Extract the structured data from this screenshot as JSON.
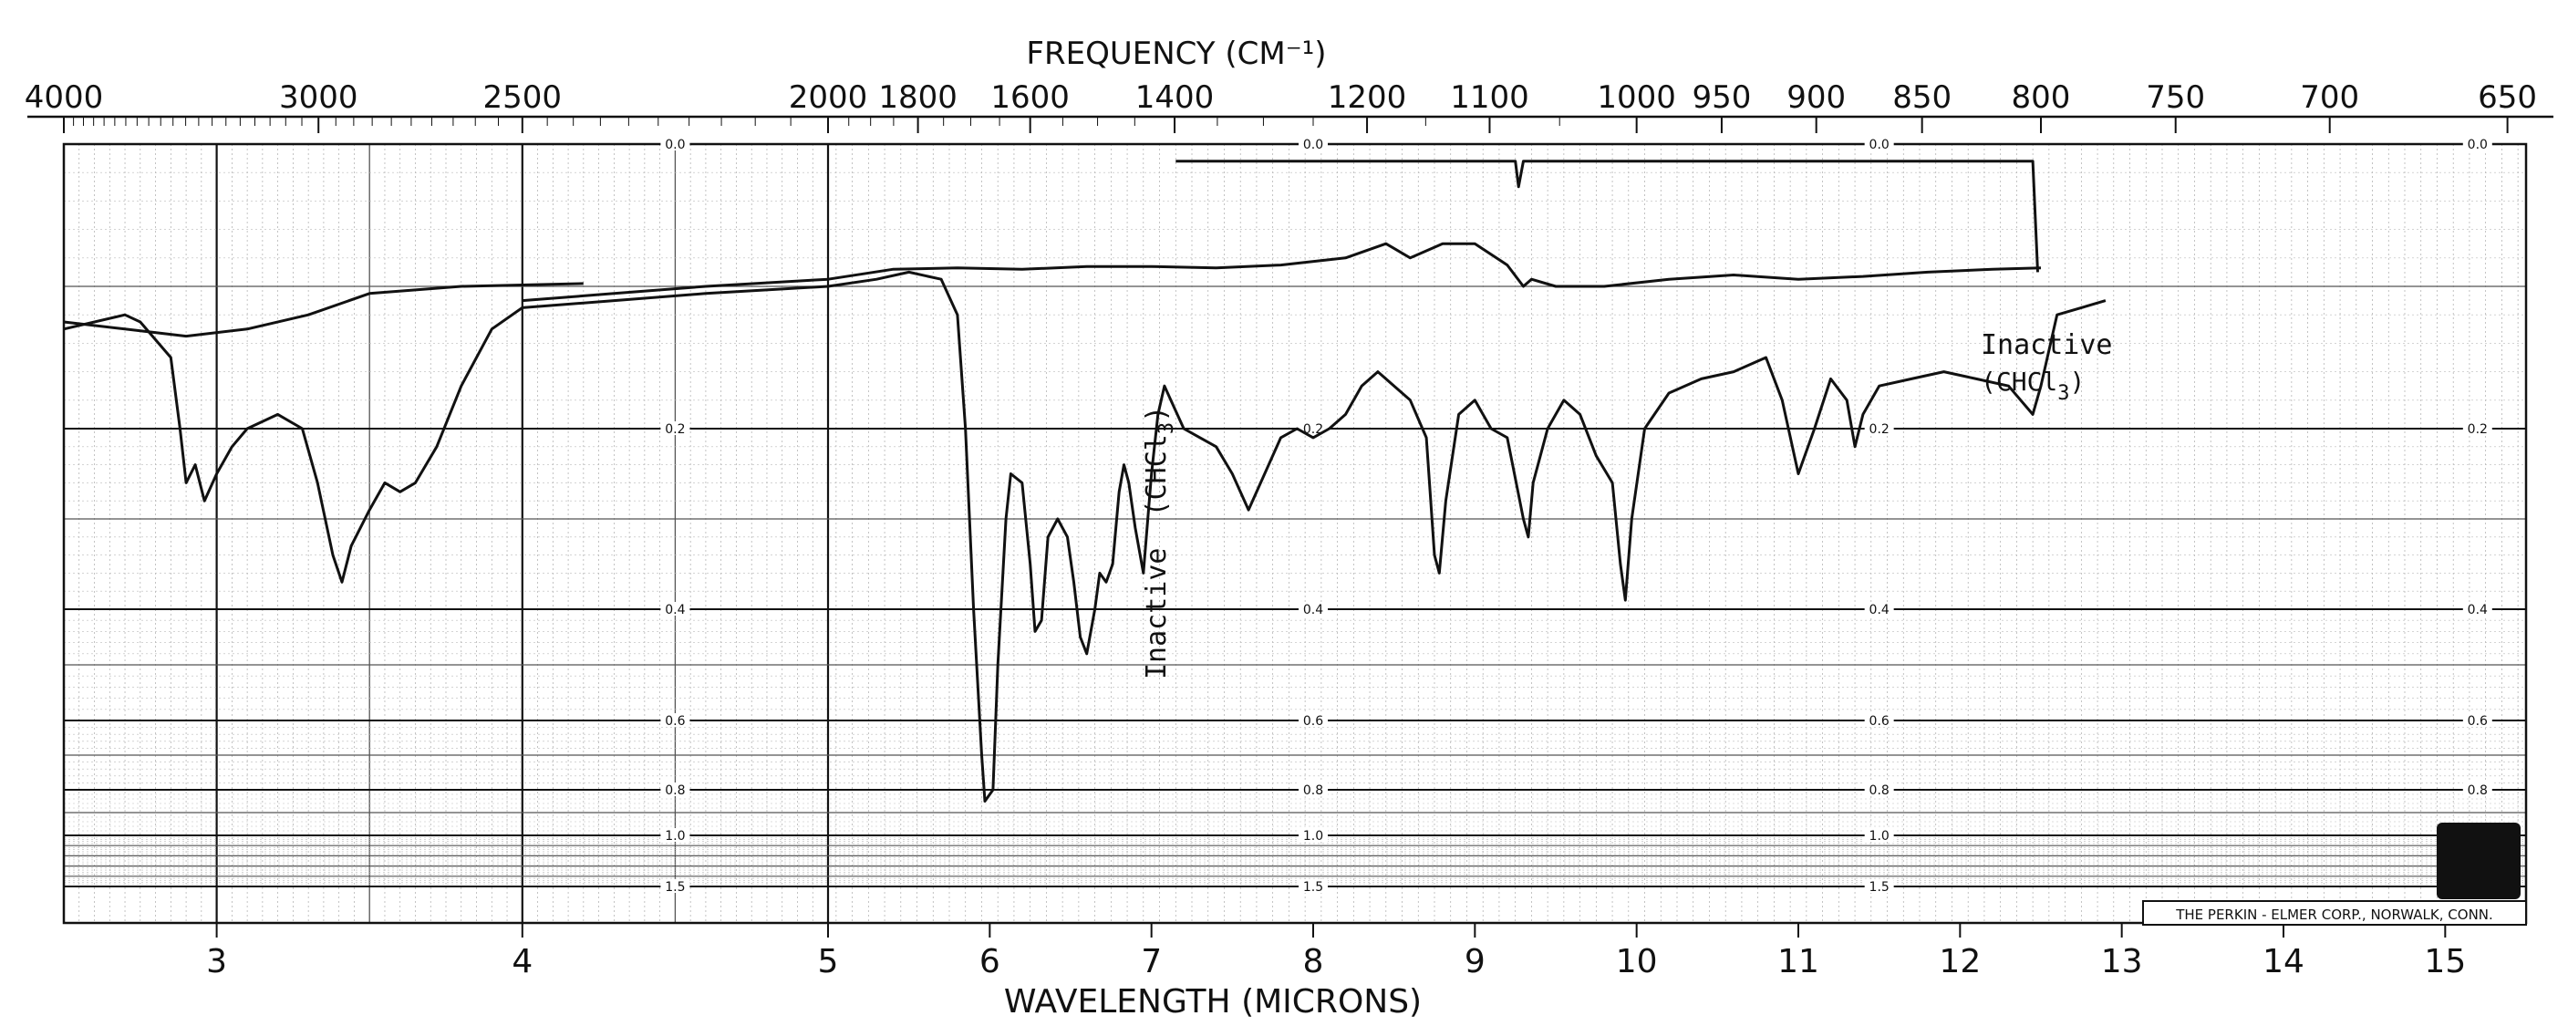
{
  "chart_data": {
    "type": "line",
    "title": "FREQUENCY (CM⁻¹)",
    "xlabel": "WAVELENGTH (MICRONS)",
    "x_range_microns": [
      2.5,
      15.5
    ],
    "y_scale": "absorbance (log), increasing downward",
    "frequency_ticks": [
      {
        "label": "4000",
        "micron": 2.5
      },
      {
        "label": "3000",
        "micron": 3.333
      },
      {
        "label": "2500",
        "micron": 4.0
      },
      {
        "label": "2000",
        "micron": 5.0
      },
      {
        "label": "1800",
        "micron": 5.556
      },
      {
        "label": "1600",
        "micron": 6.25
      },
      {
        "label": "1400",
        "micron": 7.143
      },
      {
        "label": "1200",
        "micron": 8.333
      },
      {
        "label": "1100",
        "micron": 9.091
      },
      {
        "label": "1000",
        "micron": 10.0
      },
      {
        "label": "950",
        "micron": 10.526
      },
      {
        "label": "900",
        "micron": 11.111
      },
      {
        "label": "850",
        "micron": 11.765
      },
      {
        "label": "800",
        "micron": 12.5
      },
      {
        "label": "750",
        "micron": 13.333
      },
      {
        "label": "700",
        "micron": 14.286
      },
      {
        "label": "650",
        "micron": 15.385
      }
    ],
    "wavelength_ticks": [
      {
        "label": "3",
        "micron": 3
      },
      {
        "label": "4",
        "micron": 4
      },
      {
        "label": "5",
        "micron": 5
      },
      {
        "label": "6",
        "micron": 6
      },
      {
        "label": "7",
        "micron": 7
      },
      {
        "label": "8",
        "micron": 8
      },
      {
        "label": "9",
        "micron": 9
      },
      {
        "label": "10",
        "micron": 10
      },
      {
        "label": "11",
        "micron": 11
      },
      {
        "label": "12",
        "micron": 12
      },
      {
        "label": "13",
        "micron": 13
      },
      {
        "label": "14",
        "micron": 14
      },
      {
        "label": "15",
        "micron": 15
      }
    ],
    "absorbance_labels": [
      {
        "label": "0.0",
        "value": 0.0
      },
      {
        "label": "0.2",
        "value": 0.2
      },
      {
        "label": "0.4",
        "value": 0.4
      },
      {
        "label": "0.6",
        "value": 0.6
      },
      {
        "label": "0.8",
        "value": 0.8
      },
      {
        "label": "1.0",
        "value": 1.0
      },
      {
        "label": "1.5",
        "value": 1.5
      }
    ],
    "absorbance_label_columns_micron": [
      4.5,
      8.0,
      11.5
    ],
    "absorbance_label_columns_plain_micron": [
      15.2
    ],
    "series": [
      {
        "points": [
          [
            2.5,
            0.13
          ],
          [
            2.7,
            0.12
          ],
          [
            2.75,
            0.125
          ],
          [
            2.85,
            0.15
          ],
          [
            2.88,
            0.2
          ],
          [
            2.9,
            0.26
          ],
          [
            2.93,
            0.24
          ],
          [
            2.96,
            0.28
          ],
          [
            3.0,
            0.25
          ],
          [
            3.05,
            0.22
          ],
          [
            3.1,
            0.2
          ],
          [
            3.2,
            0.19
          ],
          [
            3.28,
            0.2
          ],
          [
            3.33,
            0.26
          ],
          [
            3.38,
            0.34
          ],
          [
            3.41,
            0.37
          ],
          [
            3.44,
            0.33
          ],
          [
            3.5,
            0.29
          ],
          [
            3.55,
            0.26
          ],
          [
            3.6,
            0.27
          ],
          [
            3.65,
            0.26
          ],
          [
            3.72,
            0.22
          ],
          [
            3.8,
            0.17
          ],
          [
            3.9,
            0.13
          ],
          [
            4.0,
            0.115
          ],
          [
            4.3,
            0.11
          ],
          [
            4.6,
            0.105
          ],
          [
            5.0,
            0.1
          ],
          [
            5.3,
            0.095
          ],
          [
            5.5,
            0.09
          ],
          [
            5.7,
            0.095
          ],
          [
            5.8,
            0.12
          ],
          [
            5.85,
            0.2
          ],
          [
            5.9,
            0.4
          ],
          [
            5.95,
            0.7
          ],
          [
            5.97,
            0.85
          ],
          [
            6.02,
            0.8
          ],
          [
            6.05,
            0.5
          ],
          [
            6.1,
            0.3
          ],
          [
            6.13,
            0.25
          ],
          [
            6.2,
            0.26
          ],
          [
            6.25,
            0.35
          ],
          [
            6.28,
            0.44
          ],
          [
            6.32,
            0.42
          ],
          [
            6.36,
            0.32
          ],
          [
            6.42,
            0.3
          ],
          [
            6.48,
            0.32
          ],
          [
            6.52,
            0.37
          ],
          [
            6.56,
            0.45
          ],
          [
            6.6,
            0.48
          ],
          [
            6.65,
            0.4
          ],
          [
            6.68,
            0.36
          ],
          [
            6.72,
            0.37
          ],
          [
            6.76,
            0.35
          ],
          [
            6.8,
            0.27
          ],
          [
            6.83,
            0.24
          ],
          [
            6.86,
            0.26
          ],
          [
            6.9,
            0.31
          ],
          [
            6.95,
            0.36
          ],
          [
            7.0,
            0.25
          ],
          [
            7.04,
            0.19
          ],
          [
            7.08,
            0.17
          ],
          [
            7.12,
            0.18
          ],
          [
            7.2,
            0.2
          ],
          [
            7.3,
            0.21
          ],
          [
            7.4,
            0.22
          ],
          [
            7.5,
            0.25
          ],
          [
            7.6,
            0.29
          ],
          [
            7.7,
            0.25
          ],
          [
            7.8,
            0.21
          ],
          [
            7.9,
            0.2
          ],
          [
            8.0,
            0.21
          ],
          [
            8.1,
            0.2
          ],
          [
            8.2,
            0.19
          ],
          [
            8.3,
            0.17
          ],
          [
            8.4,
            0.16
          ],
          [
            8.5,
            0.17
          ],
          [
            8.6,
            0.18
          ],
          [
            8.7,
            0.21
          ],
          [
            8.75,
            0.34
          ],
          [
            8.78,
            0.36
          ],
          [
            8.82,
            0.28
          ],
          [
            8.9,
            0.19
          ],
          [
            9.0,
            0.18
          ],
          [
            9.1,
            0.2
          ],
          [
            9.2,
            0.21
          ],
          [
            9.3,
            0.3
          ],
          [
            9.33,
            0.32
          ],
          [
            9.36,
            0.26
          ],
          [
            9.45,
            0.2
          ],
          [
            9.55,
            0.18
          ],
          [
            9.65,
            0.19
          ],
          [
            9.75,
            0.23
          ],
          [
            9.85,
            0.26
          ],
          [
            9.9,
            0.35
          ],
          [
            9.93,
            0.39
          ],
          [
            9.97,
            0.3
          ],
          [
            10.05,
            0.2
          ],
          [
            10.2,
            0.175
          ],
          [
            10.4,
            0.165
          ],
          [
            10.6,
            0.16
          ],
          [
            10.8,
            0.15
          ],
          [
            10.9,
            0.18
          ],
          [
            11.0,
            0.25
          ],
          [
            11.1,
            0.2
          ],
          [
            11.2,
            0.165
          ],
          [
            11.3,
            0.18
          ],
          [
            11.35,
            0.22
          ],
          [
            11.4,
            0.19
          ],
          [
            11.5,
            0.17
          ],
          [
            11.7,
            0.165
          ],
          [
            11.9,
            0.16
          ],
          [
            12.1,
            0.165
          ],
          [
            12.3,
            0.17
          ],
          [
            12.45,
            0.19
          ],
          [
            12.5,
            0.17
          ],
          [
            12.6,
            0.12
          ],
          [
            12.9,
            0.11
          ]
        ]
      },
      {
        "points": [
          [
            4.0,
            0.11
          ],
          [
            4.3,
            0.105
          ],
          [
            4.6,
            0.1
          ],
          [
            5.0,
            0.095
          ],
          [
            5.4,
            0.088
          ],
          [
            5.8,
            0.087
          ],
          [
            6.2,
            0.088
          ],
          [
            6.6,
            0.086
          ],
          [
            7.0,
            0.086
          ],
          [
            7.4,
            0.087
          ],
          [
            7.8,
            0.085
          ],
          [
            8.2,
            0.08
          ],
          [
            8.45,
            0.07
          ],
          [
            8.6,
            0.08
          ],
          [
            8.8,
            0.07
          ],
          [
            9.0,
            0.07
          ],
          [
            9.2,
            0.085
          ],
          [
            9.3,
            0.1
          ],
          [
            9.35,
            0.095
          ],
          [
            9.5,
            0.1
          ],
          [
            9.8,
            0.1
          ],
          [
            10.2,
            0.095
          ],
          [
            10.6,
            0.092
          ],
          [
            11.0,
            0.095
          ],
          [
            11.4,
            0.093
          ],
          [
            11.8,
            0.09
          ],
          [
            12.2,
            0.088
          ],
          [
            12.5,
            0.087
          ]
        ]
      },
      {
        "points": [
          [
            2.5,
            0.125
          ],
          [
            2.7,
            0.13
          ],
          [
            2.9,
            0.135
          ],
          [
            3.1,
            0.13
          ],
          [
            3.3,
            0.12
          ],
          [
            3.5,
            0.105
          ],
          [
            3.8,
            0.1
          ],
          [
            4.2,
            0.098
          ]
        ]
      },
      {
        "points": [
          [
            7.15,
            0.012
          ],
          [
            9.25,
            0.012
          ],
          [
            9.27,
            0.03
          ],
          [
            9.3,
            0.012
          ],
          [
            12.45,
            0.012
          ],
          [
            12.48,
            0.09
          ]
        ]
      }
    ],
    "annotations": {
      "inactive_label": "Inactive",
      "chcl3_label": "(CHCl",
      "chcl3_subscript": "3",
      "chcl3_close": ")"
    },
    "footer": "THE PERKIN - ELMER CORP., NORWALK, CONN."
  }
}
